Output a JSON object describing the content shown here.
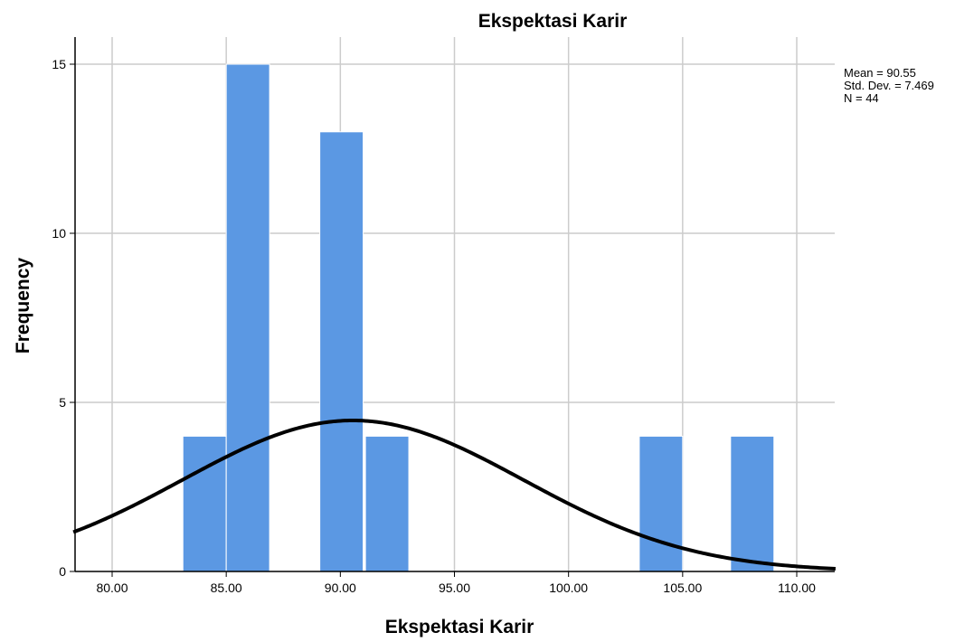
{
  "chart_data": {
    "type": "bar",
    "title": "Ekspektasi Karir",
    "xlabel": "Ekspektasi Karir",
    "ylabel": "Frequency",
    "xlim": [
      78.3,
      111.7
    ],
    "ylim": [
      0,
      16
    ],
    "x_ticks": [
      80,
      85,
      90,
      95,
      100,
      105,
      110
    ],
    "x_tick_labels": [
      "80.00",
      "85.00",
      "90.00",
      "95.00",
      "100.00",
      "105.00",
      "110.00"
    ],
    "y_ticks": [
      0,
      5,
      10,
      15
    ],
    "y_tick_labels": [
      "0",
      "5",
      "10",
      "15"
    ],
    "grid": true,
    "bin_width": 1.9,
    "bars": [
      {
        "start": 83.1,
        "end": 85.0,
        "count": 4
      },
      {
        "start": 85.0,
        "end": 86.9,
        "count": 15
      },
      {
        "start": 89.1,
        "end": 91.0,
        "count": 13
      },
      {
        "start": 91.1,
        "end": 93.0,
        "count": 4
      },
      {
        "start": 103.1,
        "end": 105.0,
        "count": 4
      },
      {
        "start": 107.1,
        "end": 109.0,
        "count": 4
      }
    ],
    "bar_color": "#5b98e3",
    "normal_curve": {
      "mean": 90.55,
      "std": 7.469,
      "n": 44,
      "color": "#000000"
    },
    "stats_box": {
      "mean": "Mean = 90.55",
      "std": "Std. Dev. = 7.469",
      "n": "N = 44"
    }
  }
}
